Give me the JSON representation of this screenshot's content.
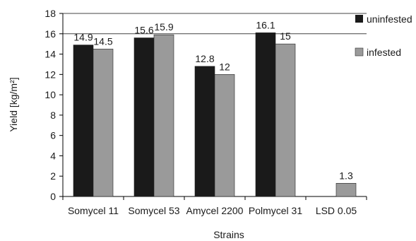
{
  "chart_data": {
    "type": "bar",
    "title": "",
    "xlabel": "Strains",
    "ylabel": "Yield [kg/m²]",
    "ylim": [
      0,
      18
    ],
    "yticks": [
      0,
      2,
      4,
      6,
      8,
      10,
      12,
      14,
      16,
      18
    ],
    "grid": false,
    "legend_position": "top-right",
    "categories": [
      "Somycel 11",
      "Somycel 53",
      "Amycel 2200",
      "Polmycel 31",
      "LSD 0.05"
    ],
    "series": [
      {
        "name": "uninfested",
        "color": "#1a1a1a",
        "values": [
          14.9,
          15.6,
          12.8,
          16.1,
          null
        ],
        "labels": [
          "14.9",
          "15.6",
          "12.8",
          "16.1",
          ""
        ]
      },
      {
        "name": "infested",
        "color": "#9a9a9a",
        "values": [
          14.5,
          15.9,
          12.0,
          15.0,
          1.3
        ],
        "labels": [
          "14.5",
          "15.9",
          "12",
          "15",
          "1.3"
        ]
      }
    ]
  }
}
